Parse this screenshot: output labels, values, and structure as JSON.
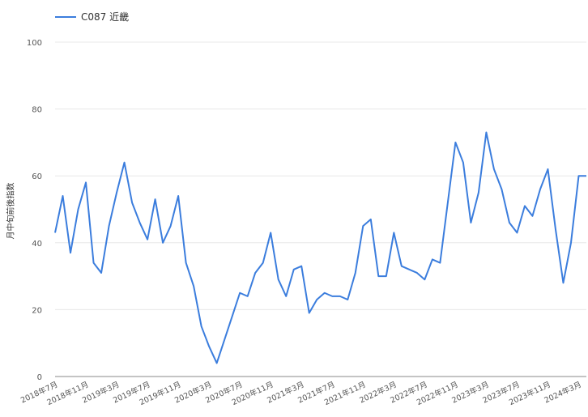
{
  "legend": {
    "series_name": "C087 近畿"
  },
  "colors": {
    "series": "#3b7ddd",
    "grid": "#e8e8e8",
    "axis": "#888888",
    "text": "#555555"
  },
  "chart_data": {
    "type": "line",
    "title": "",
    "xlabel": "",
    "ylabel": "月中旬前後指数",
    "ylim": [
      0,
      100
    ],
    "yticks": [
      0,
      20,
      40,
      60,
      80,
      100
    ],
    "grid": true,
    "legend_position": "top-left",
    "x_tick_labels": [
      "2018年7月",
      "2018年11月",
      "2019年3月",
      "2019年7月",
      "2019年11月",
      "2020年3月",
      "2020年7月",
      "2020年11月",
      "2021年3月",
      "2021年7月",
      "2021年11月",
      "2022年3月",
      "2022年7月",
      "2022年11月",
      "2023年3月",
      "2023年7月",
      "2023年11月",
      "2024年3月"
    ],
    "series": [
      {
        "name": "C087 近畿",
        "x": [
          "2018年7月",
          "2018年8月",
          "2018年9月",
          "2018年10月",
          "2018年11月",
          "2018年12月",
          "2019年1月",
          "2019年2月",
          "2019年3月",
          "2019年4月",
          "2019年5月",
          "2019年6月",
          "2019年7月",
          "2019年8月",
          "2019年9月",
          "2019年10月",
          "2019年11月",
          "2019年12月",
          "2020年1月",
          "2020年2月",
          "2020年3月",
          "2020年4月",
          "2020年5月",
          "2020年6月",
          "2020年7月",
          "2020年8月",
          "2020年9月",
          "2020年10月",
          "2020年11月",
          "2020年12月",
          "2021年1月",
          "2021年2月",
          "2021年3月",
          "2021年4月",
          "2021年5月",
          "2021年6月",
          "2021年7月",
          "2021年8月",
          "2021年9月",
          "2021年10月",
          "2021年11月",
          "2021年12月",
          "2022年1月",
          "2022年2月",
          "2022年3月",
          "2022年4月",
          "2022年5月",
          "2022年6月",
          "2022年7月",
          "2022年8月",
          "2022年9月",
          "2022年10月",
          "2022年11月",
          "2022年12月",
          "2023年1月",
          "2023年2月",
          "2023年3月",
          "2023年4月",
          "2023年5月",
          "2023年6月",
          "2023年7月",
          "2023年8月",
          "2023年9月",
          "2023年10月",
          "2023年11月",
          "2023年12月",
          "2024年1月",
          "2024年2月",
          "2024年3月",
          "2024年4月"
        ],
        "values": [
          43,
          54,
          37,
          50,
          58,
          34,
          31,
          45,
          55,
          64,
          52,
          46,
          41,
          53,
          40,
          45,
          54,
          34,
          27,
          15,
          9,
          4,
          11,
          18,
          25,
          24,
          31,
          34,
          43,
          29,
          24,
          32,
          33,
          19,
          23,
          25,
          24,
          24,
          23,
          31,
          45,
          47,
          30,
          30,
          43,
          33,
          32,
          31,
          29,
          35,
          34,
          52,
          70,
          64,
          46,
          55,
          73,
          62,
          56,
          46,
          43,
          51,
          48,
          56,
          62,
          44,
          28,
          40,
          60,
          60
        ]
      }
    ]
  }
}
